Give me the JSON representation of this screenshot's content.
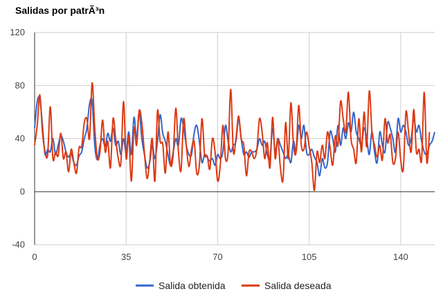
{
  "chart_data": {
    "type": "line",
    "title": "Salidas por patrÃ³n",
    "xlabel": "",
    "ylabel": "",
    "xlim": [
      0,
      153
    ],
    "ylim": [
      -40,
      120
    ],
    "x_ticks": [
      "0",
      "35",
      "70",
      "105",
      "140"
    ],
    "y_ticks": [
      "120",
      "80",
      "40",
      "0",
      "-40"
    ],
    "x_tick_values": [
      0,
      35,
      70,
      105,
      140
    ],
    "y_tick_values": [
      120,
      80,
      40,
      0,
      -40
    ],
    "grid": true,
    "legend_position": "bottom",
    "series": [
      {
        "name": "Salida obtenida",
        "color": "#3366cc",
        "values": [
          48,
          68,
          70,
          50,
          28,
          32,
          30,
          40,
          28,
          35,
          42,
          38,
          30,
          26,
          29,
          22,
          20,
          27,
          30,
          40,
          48,
          66,
          68,
          35,
          24,
          35,
          40,
          34,
          44,
          38,
          48,
          35,
          38,
          28,
          40,
          30,
          45,
          28,
          56,
          40,
          60,
          40,
          28,
          18,
          22,
          35,
          25,
          38,
          58,
          44,
          38,
          28,
          20,
          30,
          40,
          35,
          55,
          48,
          35,
          28,
          28,
          44,
          50,
          38,
          22,
          28,
          26,
          23,
          25,
          20,
          28,
          25,
          30,
          50,
          38,
          30,
          35,
          38,
          55,
          40,
          28,
          30,
          26,
          30,
          30,
          32,
          40,
          35,
          38,
          28,
          25,
          48,
          30,
          40,
          35,
          30,
          25,
          28,
          22,
          38,
          30,
          50,
          40,
          50,
          30,
          28,
          32,
          26,
          22,
          12,
          25,
          18,
          22,
          45,
          40,
          30,
          50,
          35,
          48,
          40,
          52,
          45,
          60,
          45,
          40,
          35,
          48,
          40,
          28,
          45,
          30,
          22,
          45,
          35,
          30,
          52,
          48,
          40,
          30,
          55,
          45,
          50,
          45,
          35,
          40,
          55,
          45,
          50,
          38,
          30,
          28,
          35,
          38,
          45
        ]
      },
      {
        "name": "Salida deseada",
        "color": "#dc3912",
        "values": [
          35,
          50,
          73,
          45,
          30,
          28,
          64,
          25,
          30,
          27,
          44,
          25,
          30,
          15,
          32,
          22,
          14,
          33,
          34,
          52,
          55,
          40,
          82,
          48,
          25,
          30,
          54,
          30,
          38,
          18,
          55,
          40,
          25,
          22,
          68,
          25,
          42,
          8,
          48,
          35,
          61,
          52,
          29,
          10,
          23,
          40,
          8,
          61,
          38,
          36,
          14,
          45,
          20,
          28,
          63,
          30,
          16,
          55,
          35,
          19,
          32,
          38,
          14,
          20,
          55,
          28,
          27,
          17,
          40,
          30,
          8,
          20,
          50,
          25,
          30,
          77,
          30,
          40,
          57,
          40,
          35,
          12,
          30,
          30,
          25,
          32,
          55,
          45,
          25,
          37,
          18,
          56,
          25,
          40,
          18,
          9,
          52,
          25,
          67,
          35,
          30,
          65,
          35,
          32,
          45,
          34,
          22,
          1,
          30,
          22,
          35,
          25,
          45,
          33,
          20,
          42,
          35,
          68,
          55,
          45,
          75,
          40,
          32,
          22,
          55,
          30,
          60,
          34,
          76,
          45,
          35,
          26,
          35,
          24,
          55,
          37,
          43,
          22,
          25,
          45,
          24,
          17,
          60,
          45,
          30,
          62,
          30,
          32,
          24,
          75,
          22,
          45
        ]
      }
    ]
  }
}
